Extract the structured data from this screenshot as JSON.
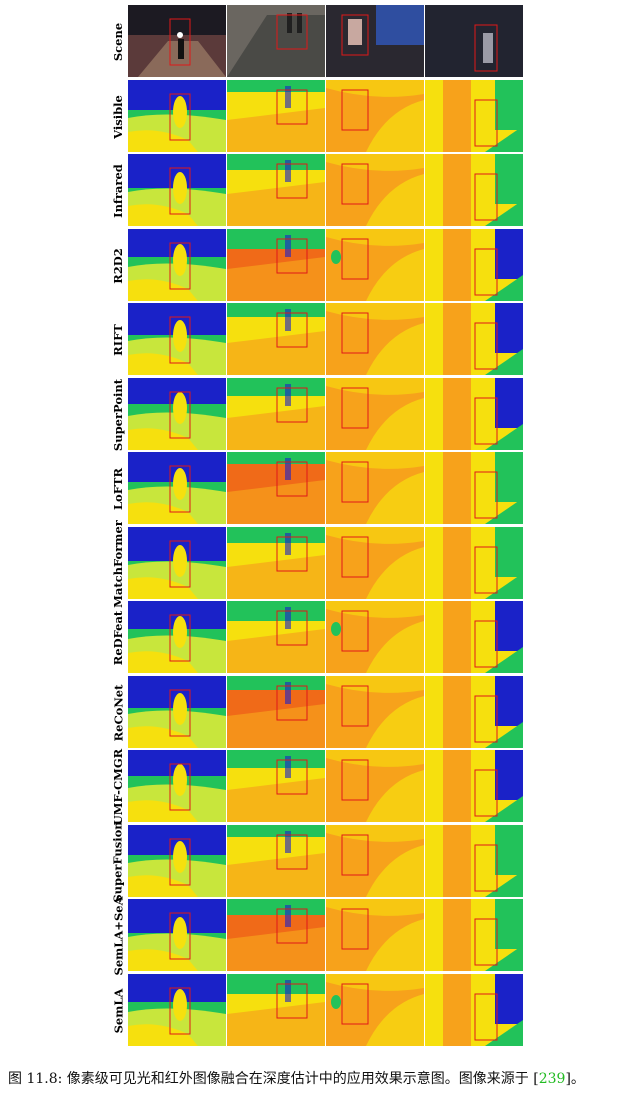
{
  "figure": {
    "rows": [
      "Scene",
      "Visible",
      "Infrared",
      "R2D2",
      "RIFT",
      "SuperPoint",
      "LoFTR",
      "MatchFormer",
      "ReDFeat",
      "ReCoNet",
      "UMF-CMGR",
      "SuperFusion",
      "SemLA+SeA",
      "SemLA"
    ],
    "columns": 4,
    "colors": {
      "box": "#e01818",
      "scene_dark": "#1c1a22",
      "far": "#1a22c8",
      "mid": "#22c25a",
      "midnear": "#c8e63c",
      "near": "#f6e00e",
      "close": "#f7a21b",
      "closest": "#f06a18"
    }
  },
  "caption": {
    "text": "图 11.8: 像素级可见光和红外图像融合在深度估计中的应用效果示意图。图像来源于 [",
    "ref": "239",
    "end": "]。"
  }
}
